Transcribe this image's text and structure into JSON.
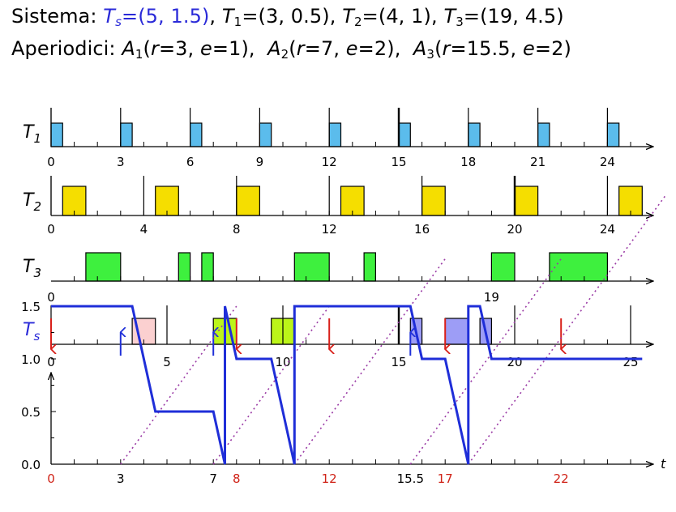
{
  "header": {
    "line1": {
      "label": "Sistema:",
      "server": {
        "sym": "T",
        "sub": "s",
        "params": "=(5, 1.5)"
      },
      "tasks": [
        {
          "sym": "T",
          "sub": "1",
          "params": "=(3, 0.5)"
        },
        {
          "sym": "T",
          "sub": "2",
          "params": "=(4, 1)"
        },
        {
          "sym": "T",
          "sub": "3",
          "params": "=(19, 4.5)"
        }
      ]
    },
    "line2": {
      "label": "Aperiodici:",
      "jobs": [
        {
          "sym": "A",
          "sub": "1",
          "open": "(",
          "r_sym": "r",
          "r_val": "=3,",
          "e_sym": "e",
          "e_val": "=1)"
        },
        {
          "sym": "A",
          "sub": "2",
          "open": "(",
          "r_sym": "r",
          "r_val": "=7,",
          "e_sym": "e",
          "e_val": "=2)"
        },
        {
          "sym": "A",
          "sub": "3",
          "open": "(",
          "r_sym": "r",
          "r_val": "=15.5,",
          "e_sym": "e",
          "e_val": "=2)"
        }
      ]
    }
  },
  "colors": {
    "t1": "#5bbcec",
    "t2": "#f5de00",
    "t3": "#3ef03e",
    "ts_a1": "#fbd0d0",
    "ts_a2": "#bcf519",
    "ts_a3": "#9d9df6",
    "budget": "#1f2ed8",
    "deadline_arrow": "#d8201a",
    "arrival_arrow": "#2030d8",
    "dotted": "#9a3aa5",
    "server_label": "#2a2ad8",
    "red_tick": "#d02318"
  },
  "timeline": {
    "t_max": 25.9,
    "rows": [
      {
        "id": "t1",
        "label_sym": "T",
        "label_sub": "1",
        "color_key": "t1",
        "period_marks": [
          0,
          3,
          6,
          9,
          12,
          15,
          18,
          21,
          24
        ],
        "deadline_marks": [],
        "jobs": [
          [
            0,
            0.5
          ],
          [
            3,
            3.5
          ],
          [
            6,
            6.5
          ],
          [
            9,
            9.5
          ],
          [
            12,
            12.5
          ],
          [
            15,
            15.5
          ],
          [
            18,
            18.5
          ],
          [
            21,
            21.5
          ],
          [
            24,
            24.5
          ]
        ],
        "tick_labels": [
          {
            "t": 0,
            "text": "0"
          },
          {
            "t": 3,
            "text": "3"
          },
          {
            "t": 6,
            "text": "6"
          },
          {
            "t": 9,
            "text": "9"
          },
          {
            "t": 12,
            "text": "12"
          },
          {
            "t": 15,
            "text": "15"
          },
          {
            "t": 18,
            "text": "18"
          },
          {
            "t": 21,
            "text": "21"
          },
          {
            "t": 24,
            "text": "24"
          }
        ]
      },
      {
        "id": "t2",
        "label_sym": "T",
        "label_sub": "2",
        "color_key": "t2",
        "period_marks": [
          0,
          4,
          8,
          12,
          16,
          20,
          24
        ],
        "deadline_marks": [],
        "jobs": [
          [
            0.5,
            1.5
          ],
          [
            4.5,
            5.5
          ],
          [
            8,
            9
          ],
          [
            12.5,
            13.5
          ],
          [
            16,
            17
          ],
          [
            20,
            21
          ],
          [
            24.5,
            25.5
          ]
        ],
        "tick_labels": [
          {
            "t": 0,
            "text": "0"
          },
          {
            "t": 4,
            "text": "4"
          },
          {
            "t": 8,
            "text": "8"
          },
          {
            "t": 12,
            "text": "12"
          },
          {
            "t": 16,
            "text": "16"
          },
          {
            "t": 20,
            "text": "20"
          },
          {
            "t": 24,
            "text": "24"
          }
        ]
      },
      {
        "id": "t3",
        "label_sym": "T",
        "label_sub": "3",
        "color_key": "t3",
        "period_marks": [
          0,
          19
        ],
        "deadline_marks": [],
        "jobs": [
          [
            1.5,
            3
          ],
          [
            5.5,
            6
          ],
          [
            6.5,
            7
          ],
          [
            10.5,
            12
          ],
          [
            13.5,
            14
          ],
          [
            19,
            20
          ],
          [
            21.5,
            24
          ]
        ],
        "tick_labels": [
          {
            "t": 0,
            "text": "0"
          },
          {
            "t": 19,
            "text": "19"
          }
        ]
      },
      {
        "id": "ts",
        "label_sym": "T",
        "label_sub": "s",
        "color_key": "server_label",
        "period_marks": [
          5,
          10,
          15,
          20,
          25
        ],
        "deadline_marks": [
          15
        ],
        "jobs_colored": [
          {
            "s": 3.5,
            "e": 4.5,
            "color_key": "ts_a1"
          },
          {
            "s": 7,
            "e": 8,
            "color_key": "ts_a2"
          },
          {
            "s": 9.5,
            "e": 10.5,
            "color_key": "ts_a2"
          },
          {
            "s": 15.5,
            "e": 16,
            "color_key": "ts_a3"
          },
          {
            "s": 17,
            "e": 18,
            "color_key": "ts_a3"
          },
          {
            "s": 18.5,
            "e": 19,
            "color_key": "ts_a3"
          }
        ],
        "arrivals": [
          3,
          7,
          15.5
        ],
        "deadlines": [
          0,
          8,
          12,
          17,
          22
        ],
        "tick_labels": [
          {
            "t": 0,
            "text": "0"
          },
          {
            "t": 5,
            "text": "5"
          },
          {
            "t": 10,
            "text": "10"
          },
          {
            "t": 15,
            "text": "15"
          },
          {
            "t": 20,
            "text": "20"
          },
          {
            "t": 25,
            "text": "25"
          }
        ]
      }
    ]
  },
  "budget": {
    "y_ticks": [
      {
        "v": 0.0,
        "text": "0.0"
      },
      {
        "v": 0.5,
        "text": "0.5"
      },
      {
        "v": 1.0,
        "text": "1.0"
      },
      {
        "v": 1.5,
        "text": "1.5"
      }
    ],
    "y_max": 1.5,
    "x_label": "t",
    "points": [
      [
        0,
        1.5
      ],
      [
        3.5,
        1.5
      ],
      [
        4.5,
        0.5
      ],
      [
        7,
        0.5
      ],
      [
        7.5,
        0
      ],
      [
        7.5,
        1.5
      ],
      [
        8,
        1
      ],
      [
        9.5,
        1
      ],
      [
        10.5,
        0
      ],
      [
        10.5,
        1.5
      ],
      [
        15.5,
        1.5
      ],
      [
        16,
        1
      ],
      [
        17,
        1
      ],
      [
        18,
        0
      ],
      [
        18,
        1.5
      ],
      [
        18.5,
        1.5
      ],
      [
        19,
        1
      ],
      [
        25.5,
        1
      ]
    ],
    "x_labels": [
      {
        "t": 0,
        "text": "0",
        "red": true
      },
      {
        "t": 3,
        "text": "3",
        "red": false
      },
      {
        "t": 7,
        "text": "7",
        "red": false
      },
      {
        "t": 8,
        "text": "8",
        "red": true
      },
      {
        "t": 12,
        "text": "12",
        "red": true
      },
      {
        "t": 15.5,
        "text": "15.5",
        "red": false
      },
      {
        "t": 17,
        "text": "17",
        "red": true
      },
      {
        "t": 22,
        "text": "22",
        "red": true
      }
    ],
    "dotted_lines": [
      {
        "from": 3,
        "to": 8
      },
      {
        "from": 7,
        "to": 12
      },
      {
        "from": 10.5,
        "to": 17
      },
      {
        "from": 15.5,
        "to": 22
      },
      {
        "from": 18,
        "to": 26.5
      }
    ]
  }
}
